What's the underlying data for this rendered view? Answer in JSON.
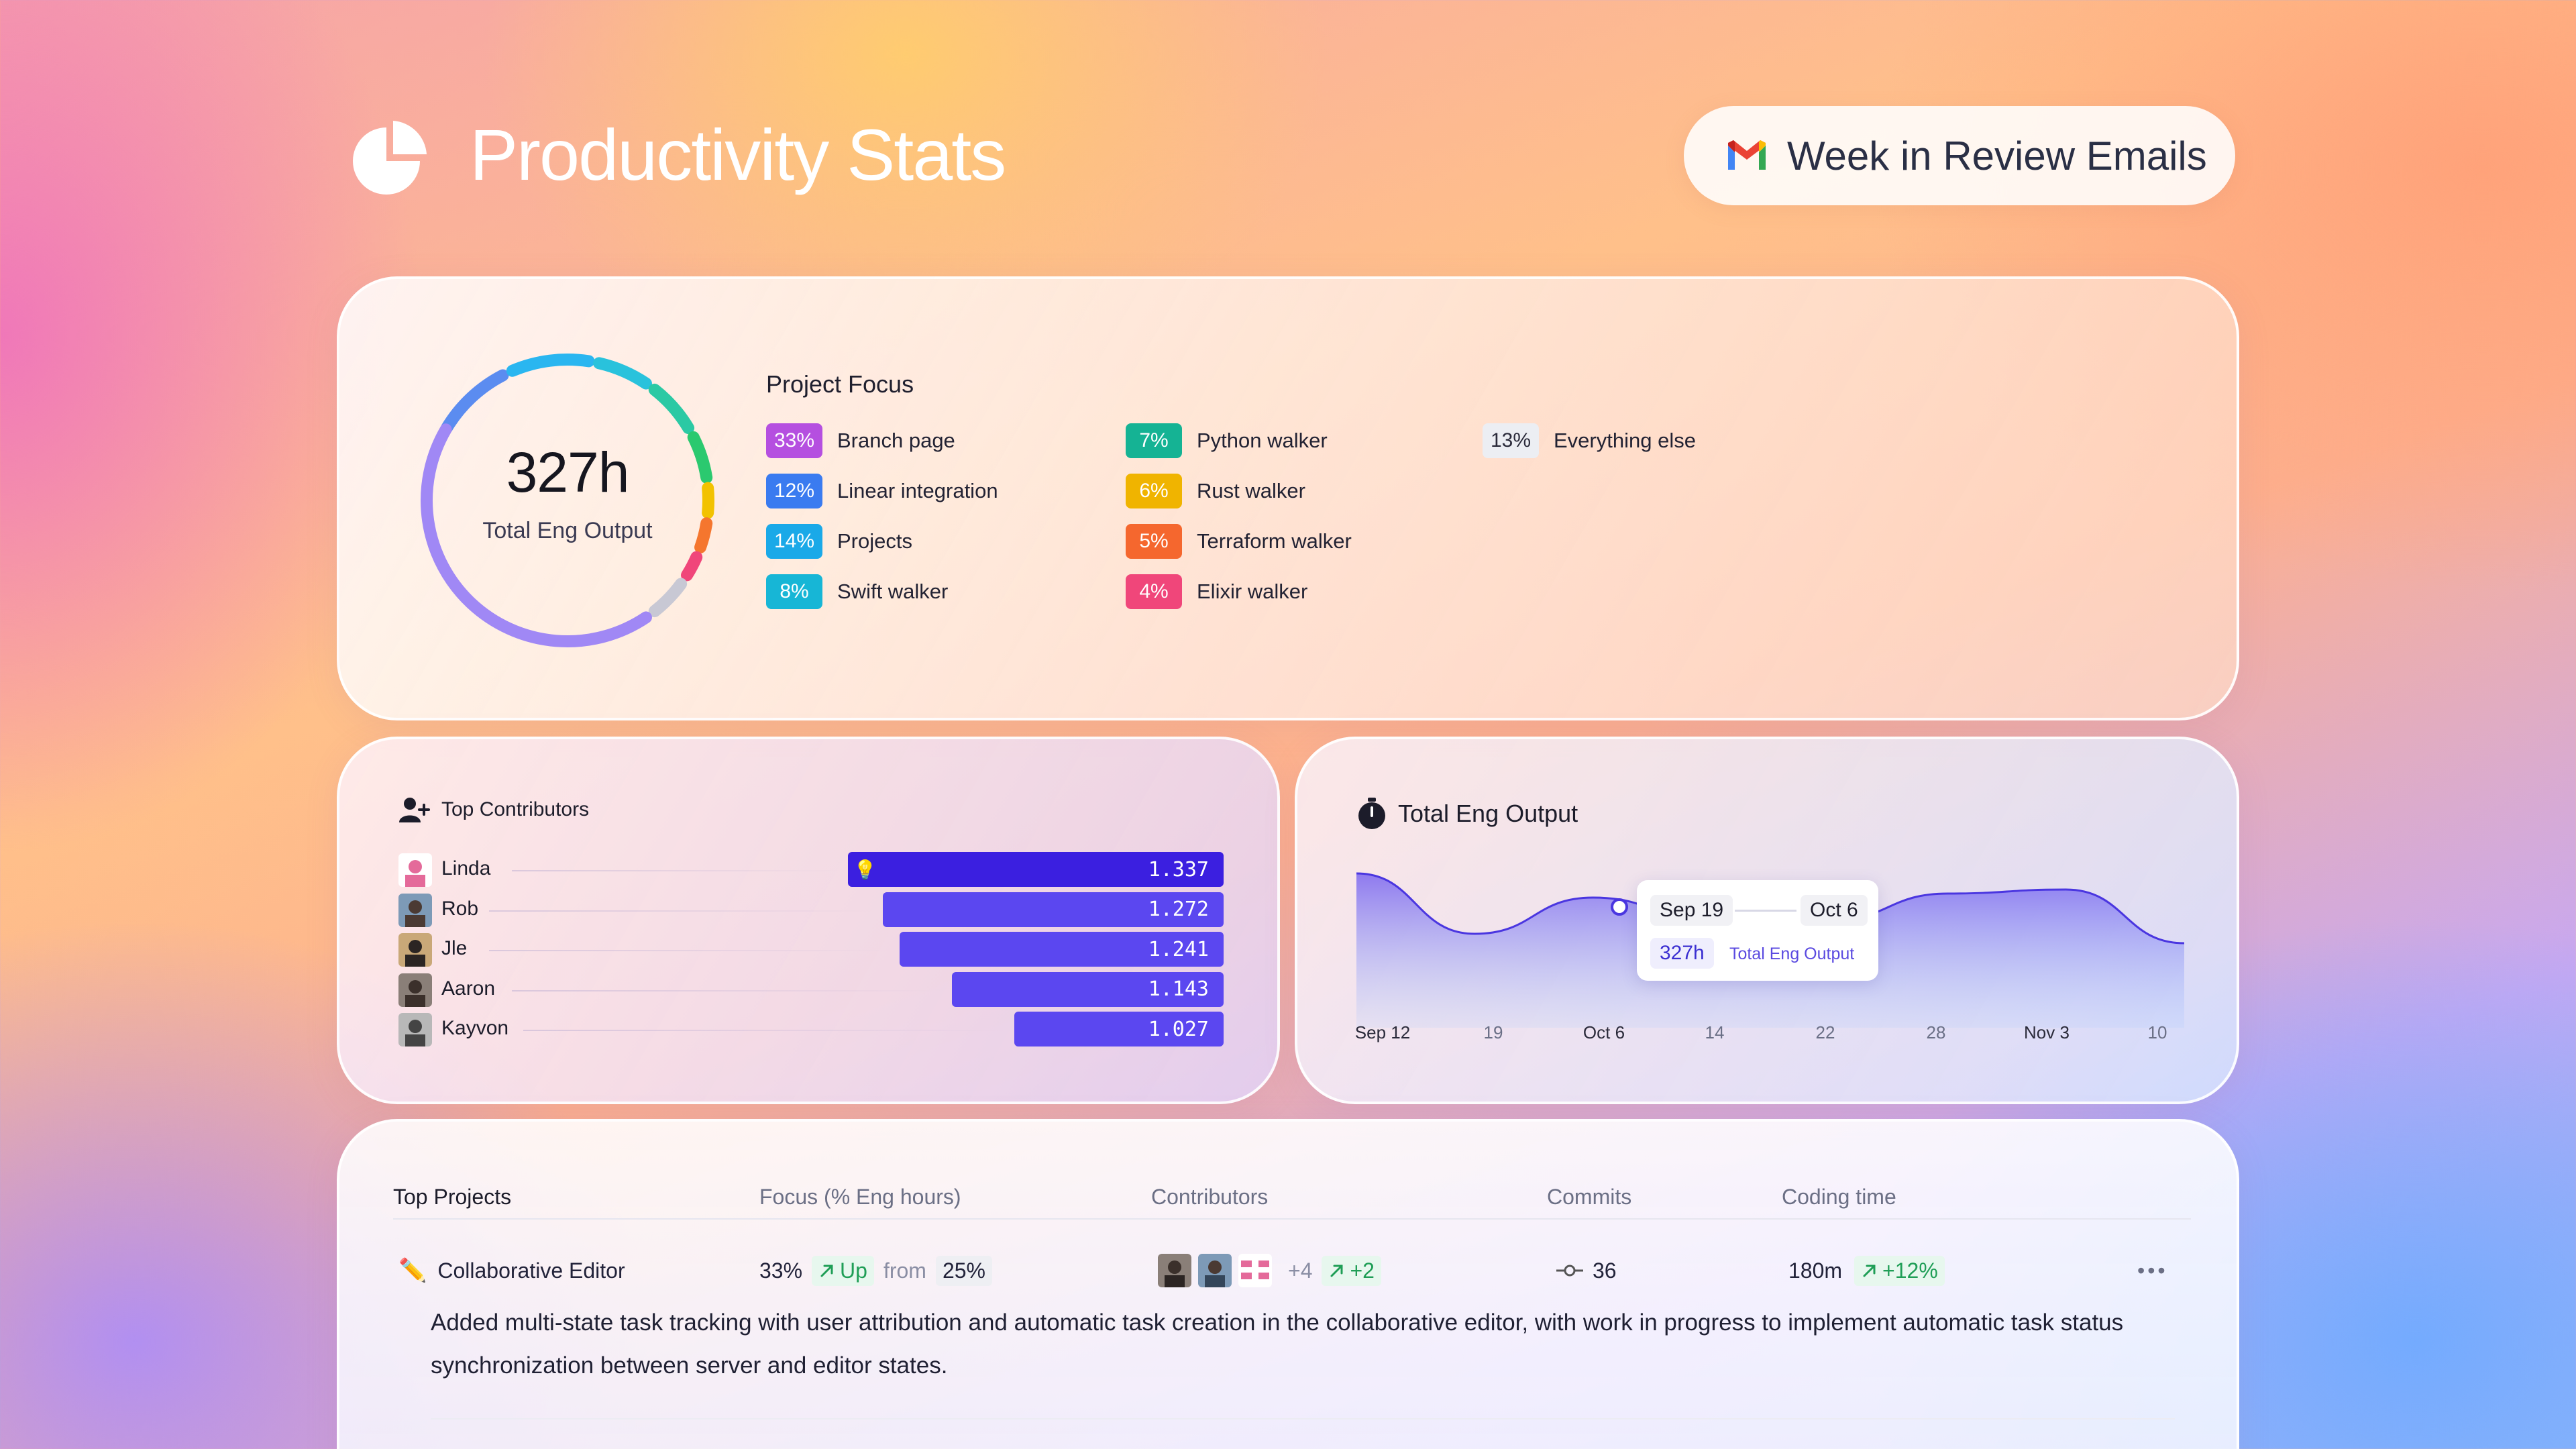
{
  "header": {
    "title": "Productivity Stats",
    "email_button": "Week in Review Emails"
  },
  "focus": {
    "total_value": "327h",
    "total_label": "Total Eng Output",
    "section_title": "Project Focus",
    "items": [
      {
        "pct": "33%",
        "label": "Branch page",
        "color": "#b54fe0"
      },
      {
        "pct": "12%",
        "label": "Linear integration",
        "color": "#3a7bf0"
      },
      {
        "pct": "14%",
        "label": "Projects",
        "color": "#1aa9e8"
      },
      {
        "pct": "8%",
        "label": "Swift walker",
        "color": "#17b6d6"
      },
      {
        "pct": "7%",
        "label": "Python walker",
        "color": "#15b394"
      },
      {
        "pct": "6%",
        "label": "Rust walker",
        "color": "#f0b400"
      },
      {
        "pct": "5%",
        "label": "Terraform walker",
        "color": "#f5672e"
      },
      {
        "pct": "4%",
        "label": "Elixir walker",
        "color": "#f0467a"
      },
      {
        "pct": "13%",
        "label": "Everything else",
        "color": "#eceef3"
      }
    ]
  },
  "contributors": {
    "title": "Top Contributors",
    "rows": [
      {
        "name": "Linda",
        "value": "1.337",
        "value_num": 1.337
      },
      {
        "name": "Rob",
        "value": "1.272",
        "value_num": 1.272
      },
      {
        "name": "Jle",
        "value": "1.241",
        "value_num": 1.241
      },
      {
        "name": "Aaron",
        "value": "1.143",
        "value_num": 1.143
      },
      {
        "name": "Kayvon",
        "value": "1.027",
        "value_num": 1.027
      }
    ]
  },
  "output": {
    "title": "Total Eng Output",
    "tooltip": {
      "from": "Sep 19",
      "to": "Oct 6",
      "value": "327h",
      "label": "Total Eng Output"
    }
  },
  "chart_data": {
    "type": "area",
    "x": [
      "Sep 12",
      "19",
      "Oct 6",
      "14",
      "22",
      "28",
      "Nov 3",
      "10"
    ],
    "major_ticks": [
      "Sep 12",
      "Oct 6",
      "Nov 3"
    ],
    "series": [
      {
        "values": [
          0.9,
          0.45,
          0.72,
          0.55,
          0.55,
          0.75,
          0.78,
          0.38
        ]
      }
    ]
  },
  "projects": {
    "headers": [
      "Top Projects",
      "Focus (% Eng hours)",
      "Contributors",
      "Commits",
      "Coding time"
    ],
    "row": {
      "name": "Collaborative Editor",
      "focus": "33%",
      "trend": "Up",
      "from_label": "from",
      "from_value": "25%",
      "extra_contributors": "+4",
      "contributors_change": "+2",
      "commits": "36",
      "coding_time": "180m",
      "coding_change": "+12%",
      "more": "•••",
      "description": "Added multi-state task tracking with user attribution and automatic task creation in the collaborative editor, with work in progress to implement automatic task status synchronization between server and editor states."
    }
  }
}
